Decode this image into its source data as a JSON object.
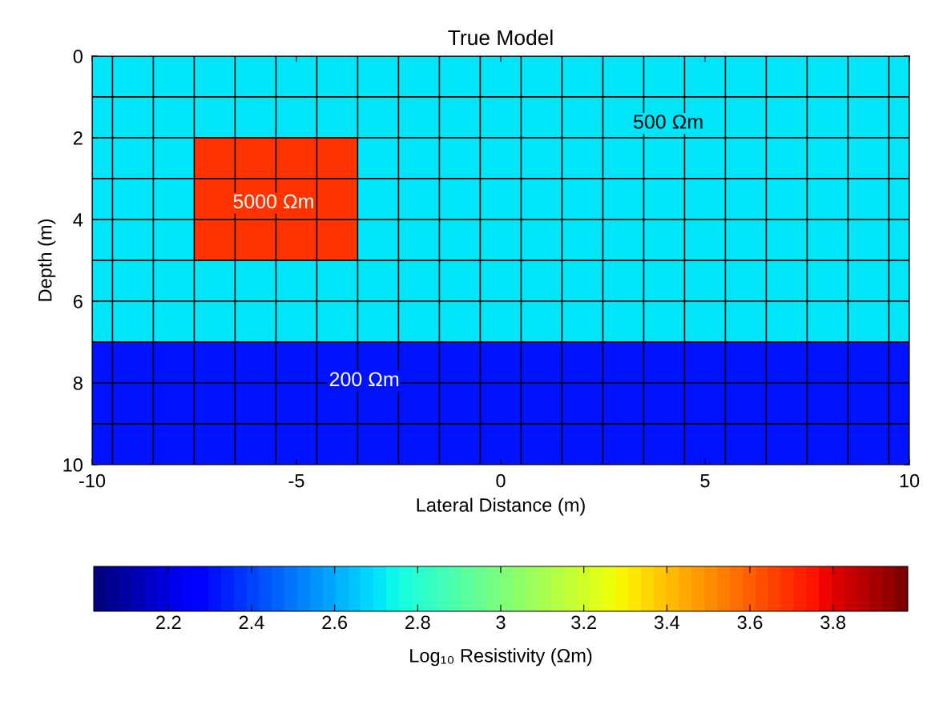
{
  "chart_data": {
    "type": "heatmap",
    "title": "True Model",
    "xlabel": "Lateral Distance (m)",
    "ylabel": "Depth (m)",
    "clabel": "Log₁₀ Resistivity (Ωm)",
    "x": [
      -9.75,
      -9,
      -8,
      -7,
      -6,
      -5,
      -4,
      -3,
      -2,
      -1,
      0,
      1,
      2,
      3,
      4,
      5,
      6,
      7,
      8,
      9,
      9.75
    ],
    "y": [
      0.5,
      1.5,
      2.5,
      3.5,
      4.5,
      5.5,
      6.5,
      7.5,
      8.5,
      9.5
    ],
    "cells": [
      [
        2.7,
        2.7,
        2.7,
        2.7,
        2.7,
        2.7,
        2.7,
        2.7,
        2.7,
        2.7,
        2.7,
        2.7,
        2.7,
        2.7,
        2.7,
        2.7,
        2.7,
        2.7,
        2.7,
        2.7,
        2.7
      ],
      [
        2.7,
        2.7,
        2.7,
        2.7,
        2.7,
        2.7,
        2.7,
        2.7,
        2.7,
        2.7,
        2.7,
        2.7,
        2.7,
        2.7,
        2.7,
        2.7,
        2.7,
        2.7,
        2.7,
        2.7,
        2.7
      ],
      [
        2.7,
        2.7,
        2.7,
        3.7,
        3.7,
        3.7,
        3.7,
        2.7,
        2.7,
        2.7,
        2.7,
        2.7,
        2.7,
        2.7,
        2.7,
        2.7,
        2.7,
        2.7,
        2.7,
        2.7,
        2.7
      ],
      [
        2.7,
        2.7,
        2.7,
        3.7,
        3.7,
        3.7,
        3.7,
        2.7,
        2.7,
        2.7,
        2.7,
        2.7,
        2.7,
        2.7,
        2.7,
        2.7,
        2.7,
        2.7,
        2.7,
        2.7,
        2.7
      ],
      [
        2.7,
        2.7,
        2.7,
        3.7,
        3.7,
        3.7,
        3.7,
        2.7,
        2.7,
        2.7,
        2.7,
        2.7,
        2.7,
        2.7,
        2.7,
        2.7,
        2.7,
        2.7,
        2.7,
        2.7,
        2.7
      ],
      [
        2.7,
        2.7,
        2.7,
        2.7,
        2.7,
        2.7,
        2.7,
        2.7,
        2.7,
        2.7,
        2.7,
        2.7,
        2.7,
        2.7,
        2.7,
        2.7,
        2.7,
        2.7,
        2.7,
        2.7,
        2.7
      ],
      [
        2.7,
        2.7,
        2.7,
        2.7,
        2.7,
        2.7,
        2.7,
        2.7,
        2.7,
        2.7,
        2.7,
        2.7,
        2.7,
        2.7,
        2.7,
        2.7,
        2.7,
        2.7,
        2.7,
        2.7,
        2.7
      ],
      [
        2.3,
        2.3,
        2.3,
        2.3,
        2.3,
        2.3,
        2.3,
        2.3,
        2.3,
        2.3,
        2.3,
        2.3,
        2.3,
        2.3,
        2.3,
        2.3,
        2.3,
        2.3,
        2.3,
        2.3,
        2.3
      ],
      [
        2.3,
        2.3,
        2.3,
        2.3,
        2.3,
        2.3,
        2.3,
        2.3,
        2.3,
        2.3,
        2.3,
        2.3,
        2.3,
        2.3,
        2.3,
        2.3,
        2.3,
        2.3,
        2.3,
        2.3,
        2.3
      ],
      [
        2.3,
        2.3,
        2.3,
        2.3,
        2.3,
        2.3,
        2.3,
        2.3,
        2.3,
        2.3,
        2.3,
        2.3,
        2.3,
        2.3,
        2.3,
        2.3,
        2.3,
        2.3,
        2.3,
        2.3,
        2.3
      ]
    ],
    "xlim": [
      -10,
      10
    ],
    "xticks": [
      -10,
      -5,
      0,
      5,
      10
    ],
    "ylim": [
      10,
      0
    ],
    "yticks": [
      0,
      2,
      4,
      6,
      8,
      10
    ],
    "clim": [
      2.02,
      3.98
    ],
    "cticks": [
      2.2,
      2.4,
      2.6,
      2.8,
      3,
      3.2,
      3.4,
      3.6,
      3.8
    ],
    "annotations": [
      "500 Ωm",
      "5000 Ωm",
      "200 Ωm"
    ],
    "grid": false
  }
}
